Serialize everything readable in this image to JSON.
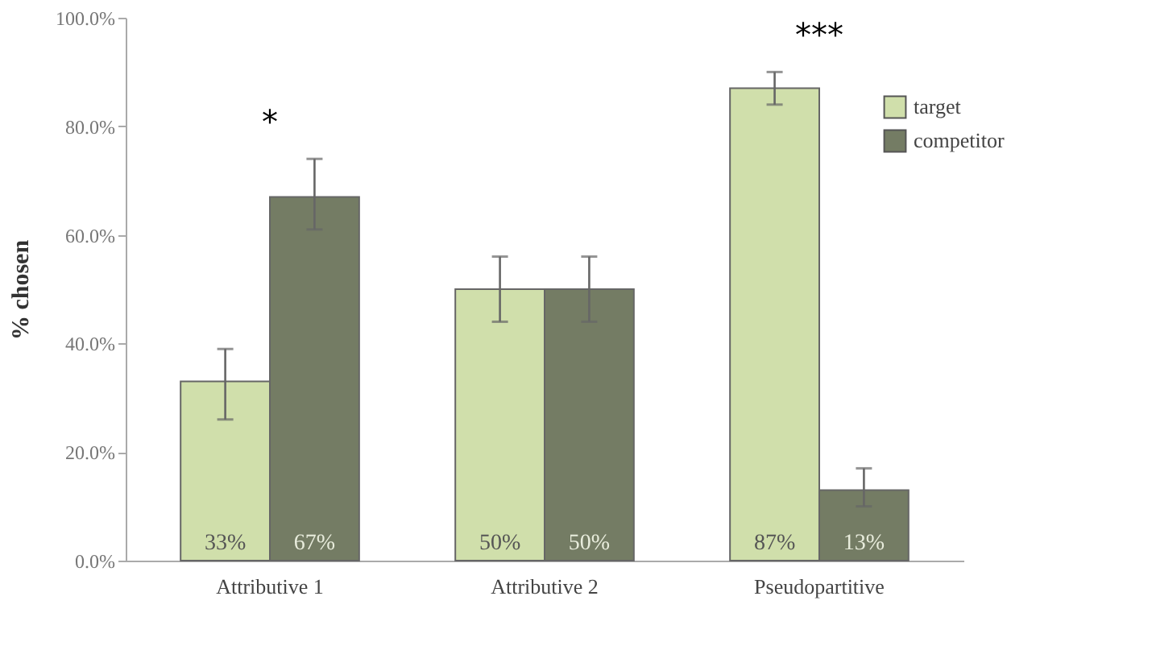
{
  "chart_data": {
    "type": "bar",
    "ylabel": "% chosen",
    "categories": [
      "Attributive 1",
      "Attributive 2",
      "Pseudopartitive"
    ],
    "series": [
      {
        "name": "target",
        "color": "#d0dfab",
        "values": [
          33,
          50,
          87
        ],
        "value_labels": [
          "33%",
          "50%",
          "87%"
        ],
        "errors": [
          [
            26,
            39
          ],
          [
            44,
            56
          ],
          [
            84,
            90
          ]
        ]
      },
      {
        "name": "competitor",
        "color": "#747c64",
        "values": [
          67,
          50,
          13
        ],
        "value_labels": [
          "67%",
          "50%",
          "13%"
        ],
        "errors": [
          [
            61,
            74
          ],
          [
            44,
            56
          ],
          [
            10,
            17
          ]
        ]
      }
    ],
    "ylim": [
      0,
      100
    ],
    "yticks": [
      {
        "value": 0,
        "label": "0.0%"
      },
      {
        "value": 20,
        "label": "20.0%"
      },
      {
        "value": 40,
        "label": "40.0%"
      },
      {
        "value": 60,
        "label": "60.0%"
      },
      {
        "value": 80,
        "label": "80.0%"
      },
      {
        "value": 100,
        "label": "100.0%"
      }
    ],
    "annotations": [
      "*",
      "***"
    ],
    "legend": "top right",
    "grid": false
  }
}
